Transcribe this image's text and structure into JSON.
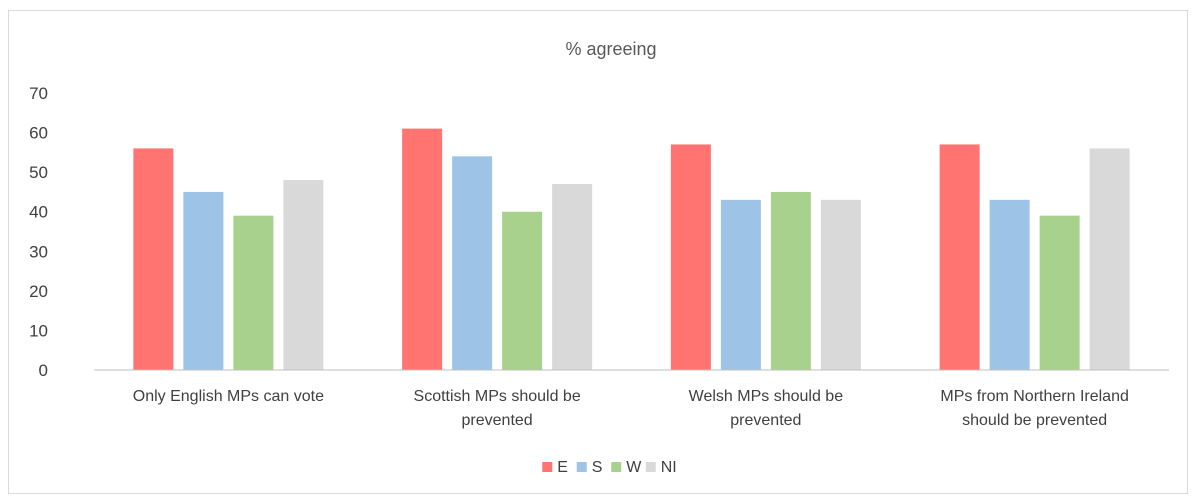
{
  "chart_data": {
    "type": "bar",
    "title": "% agreeing",
    "xlabel": "",
    "ylabel": "",
    "ylim": [
      0,
      70
    ],
    "yticks": [
      0,
      10,
      20,
      30,
      40,
      50,
      60,
      70
    ],
    "grid": false,
    "legend_position": "bottom",
    "categories": [
      [
        "Only English MPs can vote"
      ],
      [
        "Scottish MPs should be",
        "prevented"
      ],
      [
        "Welsh MPs should be",
        "prevented"
      ],
      [
        "MPs from Northern Ireland",
        "should be prevented"
      ]
    ],
    "series": [
      {
        "name": "E",
        "color": "#ff7370",
        "values": [
          56,
          61,
          57,
          57
        ]
      },
      {
        "name": "S",
        "color": "#9dc3e6",
        "values": [
          45,
          54,
          43,
          43
        ]
      },
      {
        "name": "W",
        "color": "#a9d18e",
        "values": [
          39,
          40,
          45,
          39
        ]
      },
      {
        "name": "NI",
        "color": "#d9d9d9",
        "values": [
          48,
          47,
          43,
          56
        ]
      }
    ],
    "axis_color": "#bfbfbf"
  }
}
